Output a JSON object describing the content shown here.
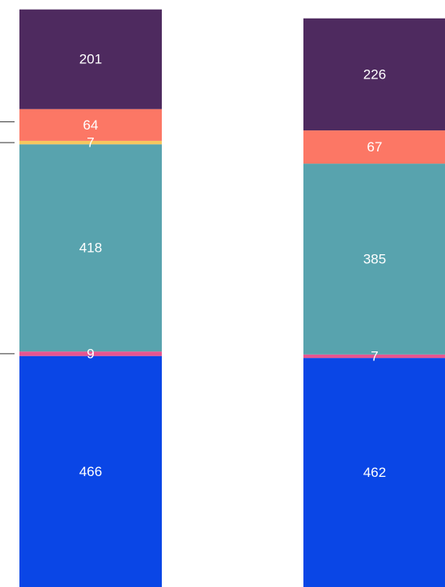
{
  "chart_data": {
    "type": "bar",
    "stacked": true,
    "categories": [
      "",
      ""
    ],
    "series": [
      {
        "values": [
          466,
          462
        ],
        "color": "#0a46e6"
      },
      {
        "values": [
          9,
          7
        ],
        "color": "#e75590"
      },
      {
        "values": [
          418,
          385
        ],
        "color": "#58a3ae"
      },
      {
        "values": [
          7,
          0
        ],
        "color": "#f5c75f"
      },
      {
        "values": [
          64,
          67
        ],
        "color": "#fc7765"
      },
      {
        "values": [
          201,
          226
        ],
        "color": "#4e2a5f"
      }
    ],
    "data_labels": [
      [
        "466",
        "462"
      ],
      [
        "9",
        "7"
      ],
      [
        "418",
        "385"
      ],
      [
        "7",
        ""
      ],
      [
        "64",
        "67"
      ],
      [
        "201",
        "226"
      ]
    ],
    "grid": false,
    "legend": false
  }
}
